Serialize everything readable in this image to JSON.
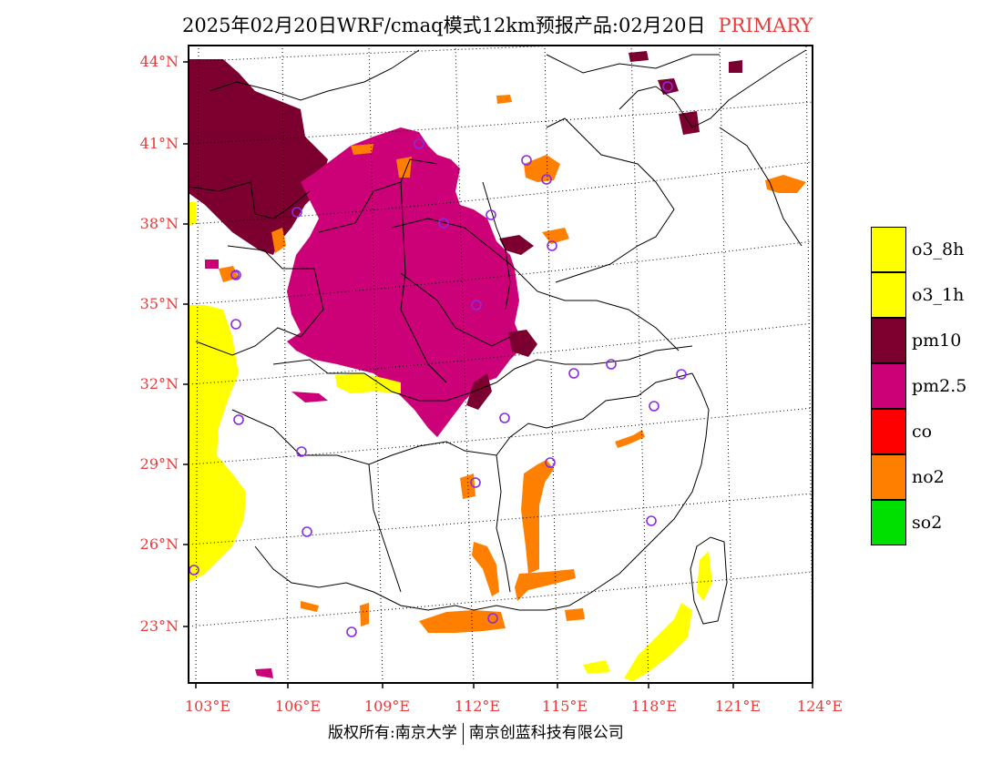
{
  "title": {
    "main": "2025年02月20日WRF/cmaq模式12km预报产品:02月20日",
    "tag": "PRIMARY"
  },
  "axes": {
    "lat_labels": [
      "44°N",
      "41°N",
      "38°N",
      "35°N",
      "32°N",
      "29°N",
      "26°N",
      "23°N"
    ],
    "lon_labels": [
      "103°E",
      "106°E",
      "109°E",
      "112°E",
      "115°E",
      "118°E",
      "121°E",
      "124°E"
    ]
  },
  "legend": [
    {
      "label": "o3_8h",
      "color": "#ffff00"
    },
    {
      "label": "o3_1h",
      "color": "#ffff00"
    },
    {
      "label": "pm10",
      "color": "#7b0030"
    },
    {
      "label": "pm2.5",
      "color": "#cc0077"
    },
    {
      "label": "co",
      "color": "#ff0000"
    },
    {
      "label": "no2",
      "color": "#ff8000"
    },
    {
      "label": "so2",
      "color": "#00e000"
    }
  ],
  "footer": {
    "left": "版权所有:南京大学",
    "right": "南京创蓝科技有限公司"
  }
}
